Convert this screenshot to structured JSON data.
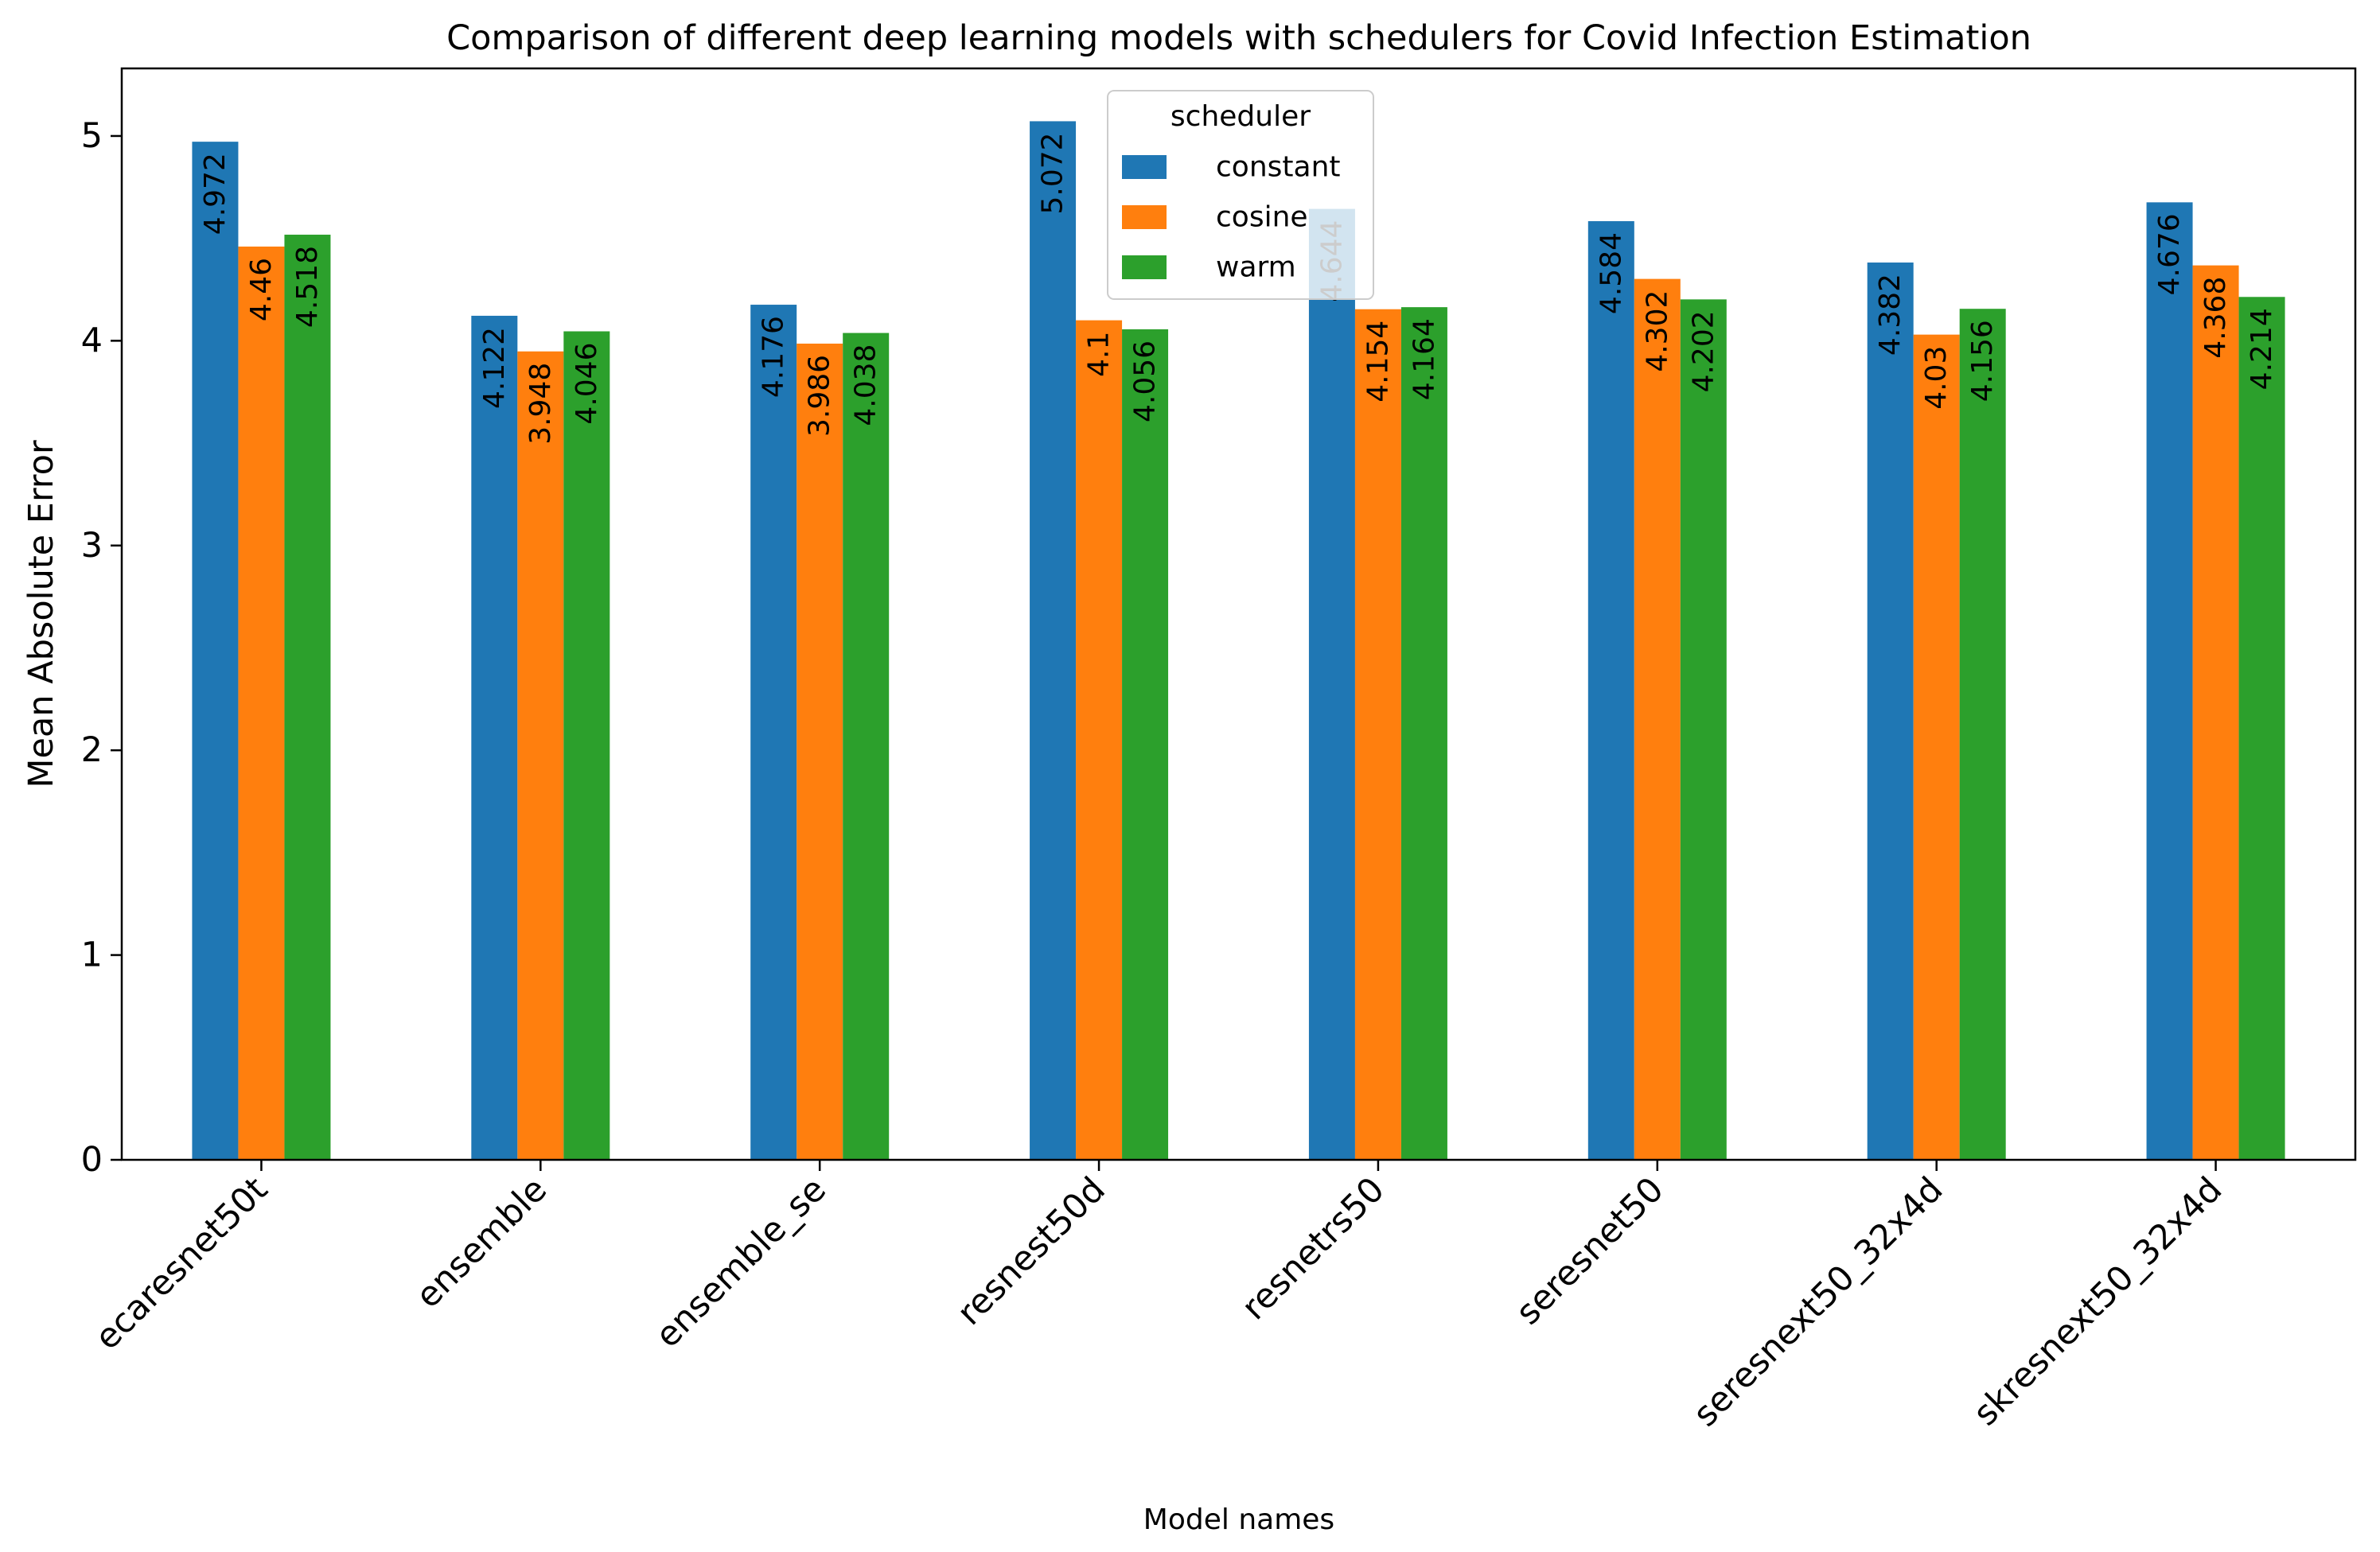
{
  "chart_data": {
    "type": "bar",
    "title": "Comparison of different deep learning models with schedulers for Covid Infection Estimation",
    "xlabel": "Model names",
    "ylabel": "Mean Absolute Error",
    "ylim": [
      0,
      5.33
    ],
    "yticks": [
      0,
      1,
      2,
      3,
      4,
      5
    ],
    "categories": [
      "ecaresnet50t",
      "ensemble",
      "ensemble_se",
      "resnest50d",
      "resnetrs50",
      "seresnet50",
      "seresnext50_32x4d",
      "skresnext50_32x4d"
    ],
    "series": [
      {
        "name": "constant",
        "color": "#1f77b4",
        "values": [
          4.972,
          4.122,
          4.176,
          5.072,
          4.644,
          4.584,
          4.382,
          4.676
        ],
        "labels": [
          "4.972",
          "4.122",
          "4.176",
          "5.072",
          "4.644",
          "4.584",
          "4.382",
          "4.676"
        ]
      },
      {
        "name": "cosine",
        "color": "#ff7f0e",
        "values": [
          4.46,
          3.948,
          3.986,
          4.1,
          4.154,
          4.302,
          4.03,
          4.368
        ],
        "labels": [
          "4.46",
          "3.948",
          "3.986",
          "4.1",
          "4.154",
          "4.302",
          "4.03",
          "4.368"
        ]
      },
      {
        "name": "warm",
        "color": "#2ca02c",
        "values": [
          4.518,
          4.046,
          4.038,
          4.056,
          4.164,
          4.202,
          4.156,
          4.214
        ],
        "labels": [
          "4.518",
          "4.046",
          "4.038",
          "4.056",
          "4.164",
          "4.202",
          "4.156",
          "4.214"
        ]
      }
    ],
    "legend": {
      "title": "scheduler",
      "placement": "top-center"
    },
    "grid": false
  }
}
